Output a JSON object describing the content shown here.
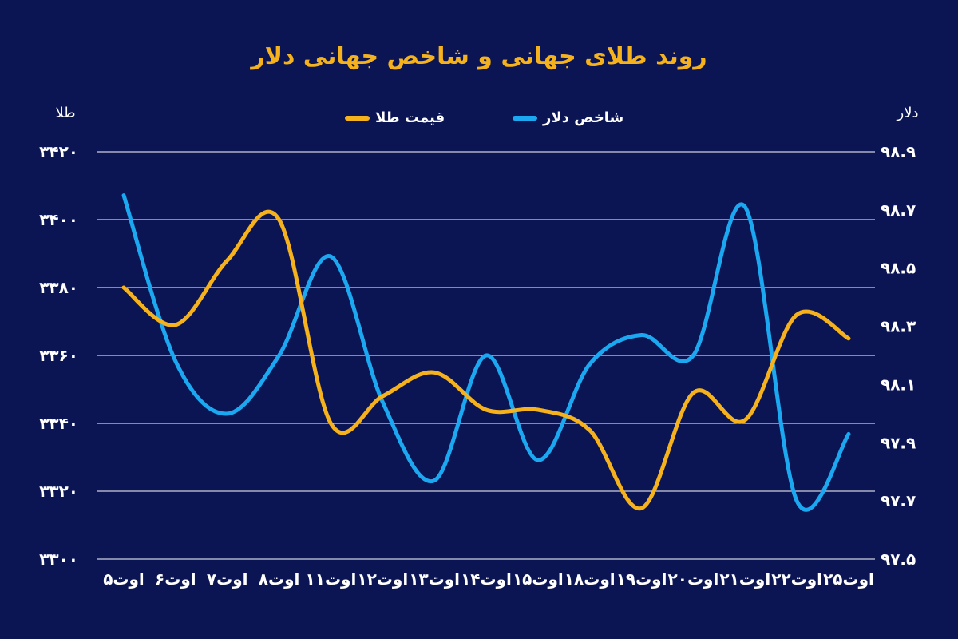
{
  "chart_data": {
    "type": "line",
    "title": "روند طلای جهانی و شاخص جهانی دلار",
    "left_axis_label": "طلا",
    "right_axis_label": "دلار",
    "categories": [
      "۵اوت",
      "۶اوت",
      "۷اوت",
      "۸اوت",
      "۱۱اوت",
      "۱۲اوت",
      "۱۳اوت",
      "۱۴اوت",
      "۱۵اوت",
      "۱۸اوت",
      "۱۹اوت",
      "۲۰اوت",
      "۲۱اوت",
      "۲۲اوت",
      "۲۵اوت"
    ],
    "left_ticks": [
      "۳۴۲۰",
      "۳۴۰۰",
      "۳۳۸۰",
      "۳۳۶۰",
      "۳۳۴۰",
      "۳۳۲۰",
      "۳۳۰۰"
    ],
    "right_ticks": [
      "۹۸.۹",
      "۹۸.۷",
      "۹۸.۵",
      "۹۸.۳",
      "۹۸.۱",
      "۹۷.۹",
      "۹۷.۷",
      "۹۷.۵"
    ],
    "left_ylim": [
      3300,
      3420
    ],
    "right_ylim": [
      97.5,
      98.9
    ],
    "grid": true,
    "legend_position": "top-center",
    "series": [
      {
        "name": "قیمت طلا",
        "axis": "left",
        "color": "#f5b21d",
        "values": [
          3380,
          3369,
          3388,
          3400,
          3340,
          3348,
          3355,
          3344,
          3344,
          3338,
          3315,
          3349,
          3341,
          3372,
          3365
        ]
      },
      {
        "name": "شاخص دلار",
        "axis": "right",
        "color": "#1ba8f0",
        "values": [
          98.75,
          98.18,
          98.0,
          98.2,
          98.54,
          98.04,
          97.77,
          98.2,
          97.84,
          98.17,
          98.27,
          98.2,
          98.71,
          97.7,
          97.93
        ]
      }
    ]
  }
}
